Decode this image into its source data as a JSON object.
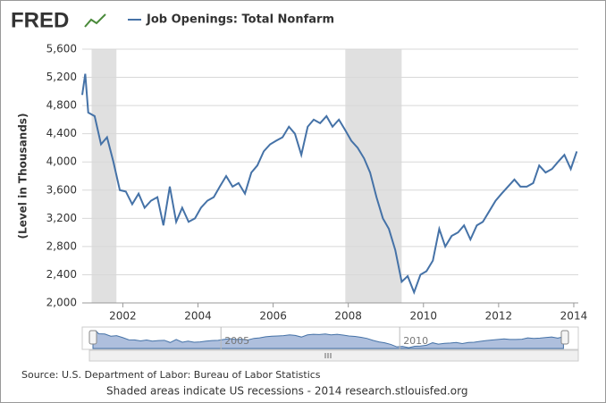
{
  "chart_data": {
    "type": "line",
    "logo": "FRED",
    "y_label": "(Level in Thousands)",
    "source": "Source: U.S. Department of Labor: Bureau of Labor Statistics",
    "footnote": "Shaded areas indicate US recessions - 2014 research.stlouisfed.org",
    "navigator_labels": [
      {
        "value": 2005,
        "label": "2005"
      },
      {
        "value": 2010,
        "label": "2010"
      }
    ],
    "recessions": [
      [
        2001.17,
        2001.83
      ],
      [
        2007.92,
        2009.42
      ]
    ],
    "recession_color": "#e0e0e0",
    "grid": true,
    "legend": "top-left",
    "xlim": [
      2000.92,
      2014.12
    ],
    "xticks": [
      2002,
      2004,
      2006,
      2008,
      2010,
      2012,
      2014
    ],
    "ylim": [
      2000,
      5600
    ],
    "yticks": [
      {
        "value": 2000,
        "label": "2,000"
      },
      {
        "value": 2400,
        "label": "2,400"
      },
      {
        "value": 2800,
        "label": "2,800"
      },
      {
        "value": 3200,
        "label": "3,200"
      },
      {
        "value": 3600,
        "label": "3,600"
      },
      {
        "value": 4000,
        "label": "4,000"
      },
      {
        "value": 4400,
        "label": "4,400"
      },
      {
        "value": 4800,
        "label": "4,800"
      },
      {
        "value": 5200,
        "label": "5,200"
      },
      {
        "value": 5600,
        "label": "5,600"
      }
    ],
    "x": [
      2000.92,
      2001.0,
      2001.08,
      2001.25,
      2001.42,
      2001.58,
      2001.75,
      2001.92,
      2002.08,
      2002.25,
      2002.42,
      2002.58,
      2002.75,
      2002.92,
      2003.08,
      2003.25,
      2003.42,
      2003.58,
      2003.75,
      2003.92,
      2004.08,
      2004.25,
      2004.42,
      2004.58,
      2004.75,
      2004.92,
      2005.08,
      2005.25,
      2005.42,
      2005.58,
      2005.75,
      2005.92,
      2006.08,
      2006.25,
      2006.42,
      2006.58,
      2006.75,
      2006.92,
      2007.08,
      2007.25,
      2007.42,
      2007.58,
      2007.75,
      2007.92,
      2008.08,
      2008.25,
      2008.42,
      2008.58,
      2008.75,
      2008.92,
      2009.08,
      2009.25,
      2009.42,
      2009.58,
      2009.75,
      2009.92,
      2010.08,
      2010.25,
      2010.42,
      2010.58,
      2010.75,
      2010.92,
      2011.08,
      2011.25,
      2011.42,
      2011.58,
      2011.75,
      2011.92,
      2012.08,
      2012.25,
      2012.42,
      2012.58,
      2012.75,
      2012.92,
      2013.08,
      2013.25,
      2013.42,
      2013.58,
      2013.75,
      2013.92,
      2014.08
    ],
    "series": [
      {
        "name": "Job Openings: Total Nonfarm",
        "color": "#4572a7",
        "values": [
          4950,
          5250,
          4700,
          4650,
          4250,
          4350,
          4000,
          3600,
          3580,
          3400,
          3550,
          3350,
          3450,
          3500,
          3100,
          3650,
          3150,
          3350,
          3150,
          3200,
          3350,
          3450,
          3500,
          3650,
          3800,
          3650,
          3700,
          3550,
          3850,
          3950,
          4150,
          4250,
          4300,
          4350,
          4500,
          4400,
          4100,
          4500,
          4600,
          4550,
          4650,
          4500,
          4600,
          4450,
          4300,
          4200,
          4050,
          3850,
          3500,
          3200,
          3050,
          2750,
          2300,
          2380,
          2150,
          2400,
          2450,
          2600,
          3050,
          2800,
          2950,
          3000,
          3100,
          2900,
          3100,
          3150,
          3300,
          3450,
          3550,
          3650,
          3750,
          3650,
          3650,
          3700,
          3950,
          3850,
          3900,
          4000,
          4100,
          3900,
          4150
        ]
      }
    ]
  }
}
